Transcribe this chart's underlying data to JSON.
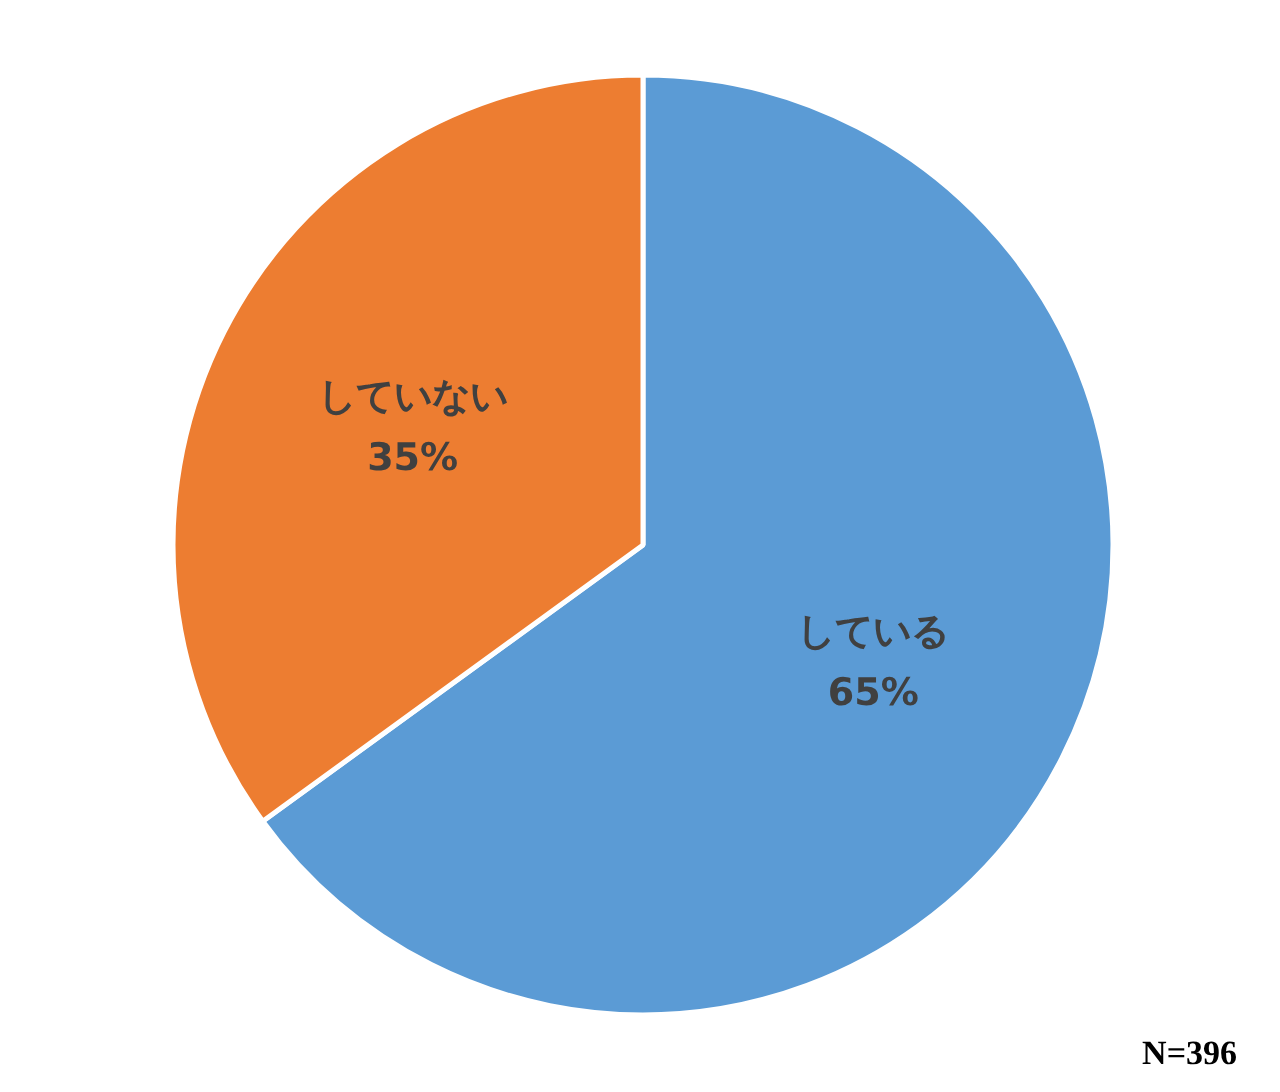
{
  "chart_data": {
    "type": "pie",
    "categories": [
      "している",
      "していない"
    ],
    "values": [
      65,
      35
    ],
    "colors": [
      "#5b9bd5",
      "#ed7d31"
    ],
    "value_labels": [
      "65%",
      "35%"
    ],
    "annotations": [
      "N=396"
    ]
  }
}
